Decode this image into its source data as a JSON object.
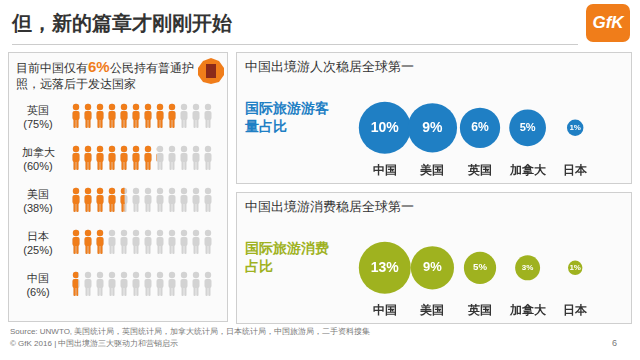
{
  "header": {
    "title": "但，新的篇章才刚刚开始",
    "logo": "GfK"
  },
  "chart_data": [
    {
      "type": "pictogram",
      "title": "目前中国仅有6%公民持有普通护照，远落后于发达国家",
      "categories": [
        "英国",
        "加拿大",
        "美国",
        "日本",
        "中国"
      ],
      "values": [
        75,
        60,
        38,
        25,
        6
      ],
      "value_labels": [
        "(75%)",
        "(60%)",
        "(38%)",
        "(25%)",
        "(6%)"
      ],
      "color": "#f07d1a",
      "data_labels": true
    },
    {
      "type": "bubble",
      "title": "中国出境游人次稳居全球第一",
      "categories": [
        "中国",
        "美国",
        "英国",
        "加拿大",
        "日本"
      ],
      "series": [
        {
          "name": "国际旅游游客量占比",
          "color": "#1f7fc4",
          "values": [
            10,
            9,
            6,
            5,
            1
          ],
          "value_labels": [
            "10%",
            "9%",
            "6%",
            "5%",
            "1%"
          ]
        }
      ],
      "data_labels": true,
      "tick_labels": "x",
      "grid": false
    },
    {
      "type": "bubble",
      "title": "中国出境游消费稳居全球第一",
      "categories": [
        "中国",
        "美国",
        "英国",
        "加拿大",
        "日本"
      ],
      "series": [
        {
          "name": "国际旅游消费占比",
          "color": "#9fb21f",
          "values": [
            13,
            9,
            5,
            3,
            1
          ],
          "value_labels": [
            "13%",
            "9%",
            "5%",
            "3%",
            "1%"
          ]
        }
      ],
      "data_labels": true,
      "tick_labels": "x",
      "grid": false
    }
  ],
  "footer": {
    "source": "Source: UNWTO, 美国统计局，英国统计局，加拿大统计局，日本统计局，中国旅游局，二手资料搜集",
    "copyright": "© GfK 2016 | 中国出境游三大驱动力和营销启示",
    "page": "6"
  }
}
